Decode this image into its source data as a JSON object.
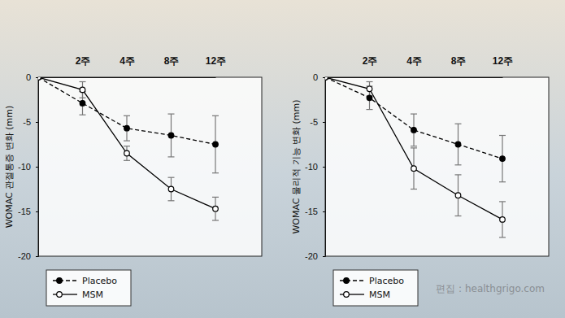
{
  "chart_data": [
    {
      "type": "line",
      "y_label": "WOMAC 관절통증 변화 (mm)",
      "categories": [
        null,
        "2주",
        "4주",
        "8주",
        "12주"
      ],
      "ylim": [
        -20,
        0
      ],
      "yticks": [
        0,
        -5,
        -10,
        -15,
        -20
      ],
      "legend": "bottom",
      "series": [
        {
          "name": "Placebo",
          "color": "#000000",
          "line_style": "dashed",
          "marker": "filled-circle",
          "values": [
            0,
            -2.9,
            -5.7,
            -6.5,
            -7.5
          ],
          "errors": [
            null,
            1.3,
            1.4,
            2.4,
            3.2
          ]
        },
        {
          "name": "MSM",
          "color": "#000000",
          "line_style": "solid",
          "marker": "open-circle",
          "values": [
            0,
            -1.4,
            -8.5,
            -12.5,
            -14.7
          ],
          "errors": [
            null,
            0.9,
            0.8,
            1.3,
            1.3
          ]
        }
      ]
    },
    {
      "type": "line",
      "y_label": "WOMAC 물리적 기능 변화 (mm)",
      "categories": [
        null,
        "2주",
        "4주",
        "8주",
        "12주"
      ],
      "ylim": [
        -20,
        0
      ],
      "yticks": [
        0,
        -5,
        -10,
        -15,
        -20
      ],
      "legend": "bottom",
      "series": [
        {
          "name": "Placebo",
          "color": "#000000",
          "line_style": "dashed",
          "marker": "filled-circle",
          "values": [
            0,
            -2.3,
            -5.9,
            -7.5,
            -9.1
          ],
          "errors": [
            null,
            1.3,
            1.8,
            2.3,
            2.6
          ]
        },
        {
          "name": "MSM",
          "color": "#000000",
          "line_style": "solid",
          "marker": "open-circle",
          "values": [
            0,
            -1.3,
            -10.2,
            -13.2,
            -15.9
          ],
          "errors": [
            null,
            0.8,
            2.3,
            2.3,
            2.0
          ]
        }
      ]
    }
  ],
  "credit": "편집 : healthgrigo.com"
}
